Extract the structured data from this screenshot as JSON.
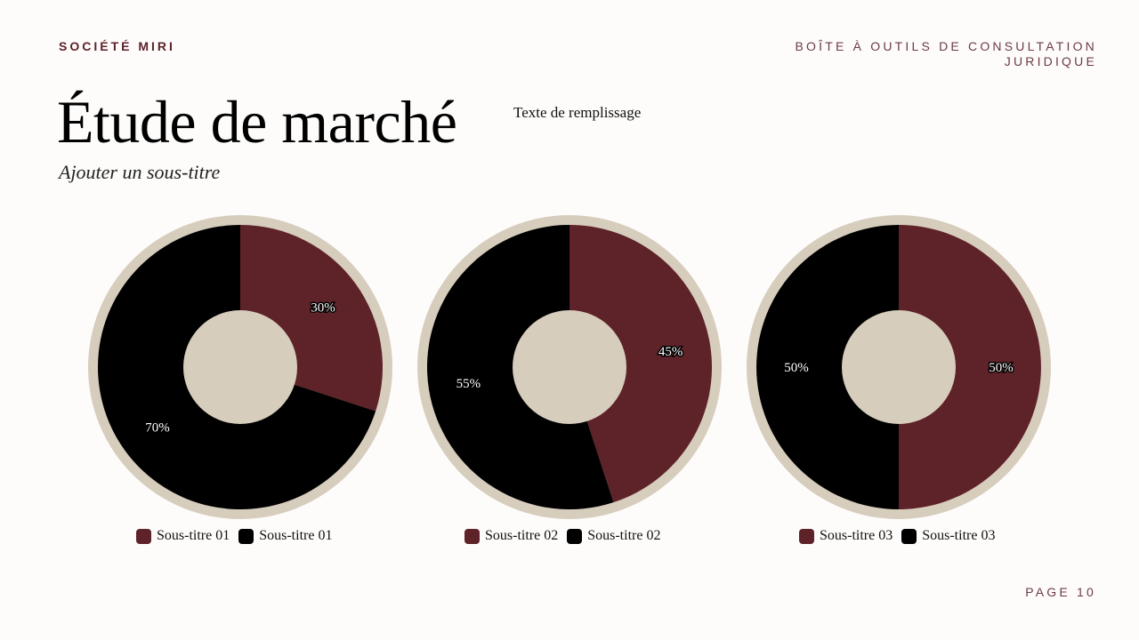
{
  "header": {
    "brand": "SOCIÉTÉ MIRI",
    "toolkit": "BOÎTE À OUTILS DE CONSULTATION JURIDIQUE"
  },
  "title": "Étude de marché",
  "filler_text": "Texte de remplissage",
  "subtitle": "Ajouter un sous-titre",
  "footer": {
    "page": "PAGE 10"
  },
  "colors": {
    "burgundy": "#5e2229",
    "black": "#000000",
    "ring": "#d7cdbd",
    "hole": "#d7cdbd"
  },
  "chart_data": [
    {
      "type": "pie",
      "series": [
        {
          "name": "Sous-titre 01",
          "value": 30,
          "label": "30%",
          "color": "#5e2229"
        },
        {
          "name": "Sous-titre 01",
          "value": 70,
          "label": "70%",
          "color": "#000000"
        }
      ]
    },
    {
      "type": "pie",
      "series": [
        {
          "name": "Sous-titre 02",
          "value": 45,
          "label": "45%",
          "color": "#5e2229"
        },
        {
          "name": "Sous-titre 02",
          "value": 55,
          "label": "55%",
          "color": "#000000"
        }
      ]
    },
    {
      "type": "pie",
      "series": [
        {
          "name": "Sous-titre 03",
          "value": 50,
          "label": "50%",
          "color": "#5e2229"
        },
        {
          "name": "Sous-titre 03",
          "value": 50,
          "label": "50%",
          "color": "#000000"
        }
      ]
    }
  ]
}
